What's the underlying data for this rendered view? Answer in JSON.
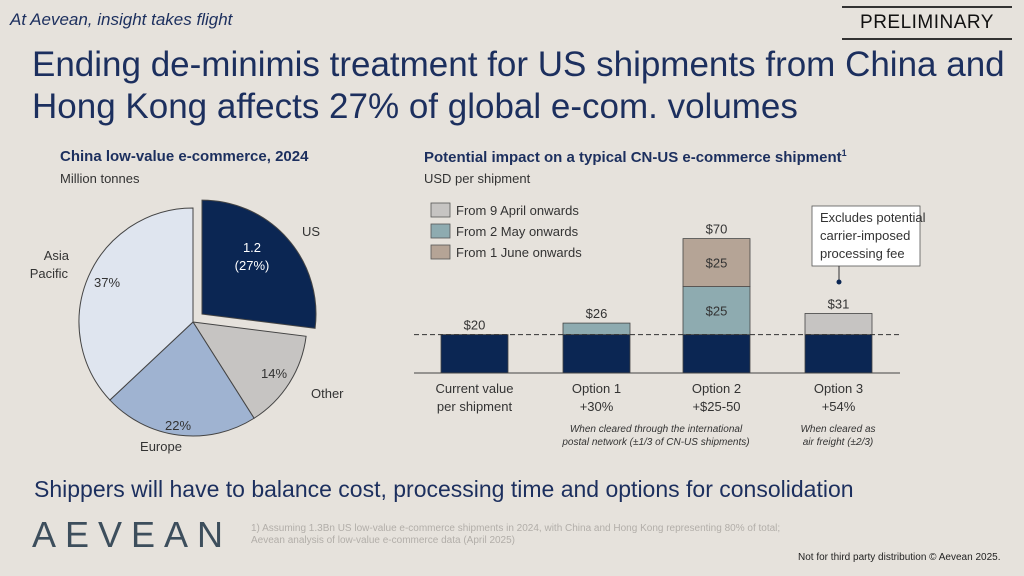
{
  "header": {
    "tagline": "At Aevean, insight takes flight",
    "badge": "PRELIMINARY",
    "title": "Ending de-minimis treatment for US shipments from China and Hong Kong affects 27% of global e-com. volumes"
  },
  "colors": {
    "background": "#e6e2dc",
    "navy": "#0b2653",
    "teal": "#8eabb0",
    "taupe": "#b5a496",
    "grey": "#c6c4c2",
    "europe": "#9fb3d1",
    "asia": "#dfe5ef"
  },
  "chart_data": [
    {
      "type": "pie",
      "title": "China low-value e-commerce, 2024",
      "subtitle": "Million tonnes",
      "slices": [
        {
          "name": "US",
          "value": 27,
          "label": "1.2",
          "pct_label": "(27%)",
          "color": "#0b2653",
          "exploded": true
        },
        {
          "name": "Other",
          "value": 14,
          "pct_label": "14%",
          "color": "#c6c4c2"
        },
        {
          "name": "Europe",
          "value": 22,
          "pct_label": "22%",
          "color": "#9fb3d1"
        },
        {
          "name": "Asia Pacific",
          "value": 37,
          "pct_label": "37%",
          "color": "#dfe5ef"
        }
      ]
    },
    {
      "type": "bar",
      "stacked": true,
      "title": "Potential impact on a typical CN-US e-commerce shipment",
      "title_sup": "1",
      "ylabel": "USD per shipment",
      "ylim": [
        0,
        75
      ],
      "reference_line": 20,
      "legend": [
        {
          "name": "From 9 April onwards",
          "color": "#c6c4c2"
        },
        {
          "name": "From 2 May onwards",
          "color": "#8eabb0"
        },
        {
          "name": "From 1 June onwards",
          "color": "#b5a496"
        }
      ],
      "categories": [
        {
          "label1": "Current value",
          "label2": "per shipment",
          "total_label": "$20",
          "segments": [
            {
              "value": 20,
              "color": "#0b2653"
            }
          ]
        },
        {
          "label1": "Option 1",
          "label2": "+30%",
          "total_label": "$26",
          "segments": [
            {
              "value": 20,
              "color": "#0b2653"
            },
            {
              "value": 6,
              "color": "#8eabb0"
            }
          ]
        },
        {
          "label1": "Option 2",
          "label2": "+$25-50",
          "total_label": "$70",
          "segments": [
            {
              "value": 20,
              "color": "#0b2653"
            },
            {
              "value": 25,
              "color": "#8eabb0",
              "label": "$25"
            },
            {
              "value": 25,
              "color": "#b5a496",
              "label": "$25"
            }
          ]
        },
        {
          "label1": "Option 3",
          "label2": "+54%",
          "total_label": "$31",
          "segments": [
            {
              "value": 20,
              "color": "#0b2653"
            },
            {
              "value": 11,
              "color": "#c6c4c2"
            }
          ]
        }
      ],
      "notes": {
        "postal_1": "When cleared through the international",
        "postal_2": "postal network (±1/3 of CN-US shipments)",
        "air_1": "When cleared as",
        "air_2": "air freight (±2/3)"
      },
      "callout": [
        "Excludes potential",
        "carrier-imposed",
        "processing fee"
      ]
    }
  ],
  "footer": {
    "takeaway": "Shippers will have to balance cost, processing time and options for consolidation",
    "logo": "AEVEAN",
    "footnote_1": "1) Assuming 1.3Bn US low-value e-commerce shipments in 2024, with China and Hong Kong representing 80% of total;",
    "footnote_2": "Aevean analysis of low-value e-commerce data (April 2025)",
    "copyright": "Not for third party distribution © Aevean 2025."
  }
}
